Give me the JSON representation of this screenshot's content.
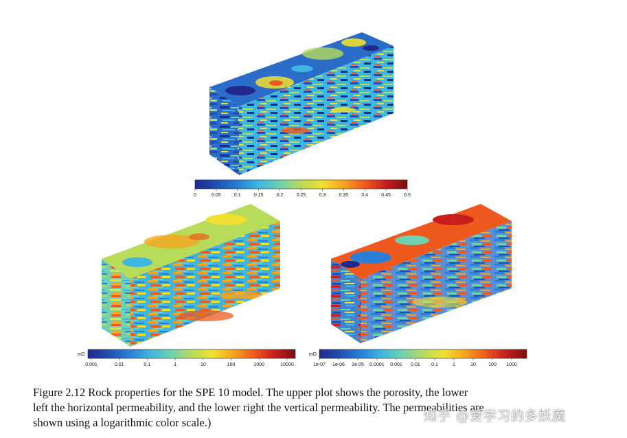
{
  "figure": {
    "panels": [
      {
        "id": "porosity",
        "unit_label": "",
        "colorbar_ticks": [
          "0",
          "0.05",
          "0.1",
          "0.15",
          "0.2",
          "0.25",
          "0.3",
          "0.35",
          "0.4",
          "0.45",
          "0.5"
        ]
      },
      {
        "id": "horizontal-permeability",
        "unit_label": "mD",
        "colorbar_ticks": [
          "0.001",
          "0.01",
          "0.1",
          "1",
          "10",
          "100",
          "1000",
          "10000"
        ]
      },
      {
        "id": "vertical-permeability",
        "unit_label": "mD",
        "colorbar_ticks": [
          "1e-07",
          "1e-06",
          "1e-05",
          "0.0001",
          "0.001",
          "0.01",
          "0.1",
          "1",
          "10",
          "100",
          "1000"
        ]
      }
    ],
    "colormap": [
      "#1f2a8c",
      "#1e4fb0",
      "#2a7fd4",
      "#3fb6e0",
      "#6fd1b0",
      "#b6dc5a",
      "#f0e030",
      "#f7a51f",
      "#ee5a1e",
      "#c81e1e",
      "#7a0f10"
    ]
  },
  "caption": {
    "line1": "Figure 2.12  Rock properties for the SPE 10 model. The upper plot shows the porosity, the lower",
    "line2": "left the horizontal permeability, and the lower right the vertical permeability. The permeabilities are",
    "line3": "shown using a logarithmic color scale.)"
  },
  "watermark": "知乎 @爱学习的多妖魔"
}
